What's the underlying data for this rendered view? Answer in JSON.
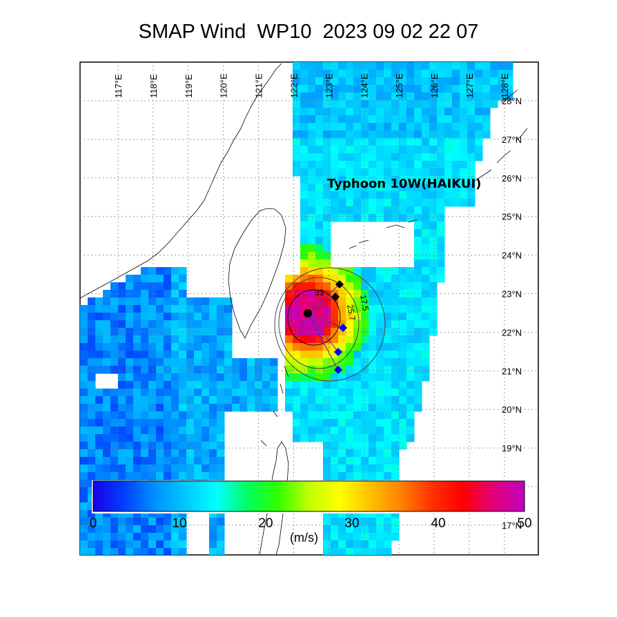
{
  "title": "SMAP Wind  WP10  2023 09 02 22 07",
  "storm_label": "Typhoon 10W(HAIKUI)",
  "longitude_labels": [
    "117°E",
    "118°E",
    "119°E",
    "120°E",
    "121°E",
    "122°E",
    "123°E",
    "124°E",
    "125°E",
    "126°E",
    "127°E",
    "128°E"
  ],
  "latitude_labels": [
    "28°N",
    "27°N",
    "26°N",
    "25°N",
    "24°N",
    "23°N",
    "22°N",
    "21°N",
    "20°N",
    "19°N",
    "18°N",
    "17°N"
  ],
  "contour_labels": [
    "33",
    "25.7",
    "17.5"
  ],
  "colorbar": {
    "ticks": [
      "0",
      "10",
      "20",
      "30",
      "40",
      "50"
    ],
    "unit": "(m/s)",
    "range": [
      0,
      50
    ],
    "colors": [
      "#1a00e6",
      "#0040ff",
      "#0090ff",
      "#00c8ff",
      "#00ffff",
      "#00ff60",
      "#30ff00",
      "#c0ff00",
      "#ffff00",
      "#ffc000",
      "#ff8000",
      "#ff3000",
      "#ff0000",
      "#e0007a",
      "#c000c0"
    ]
  },
  "colors": {
    "land_outline": "#000000",
    "grid": "#7a7a7a",
    "center_marker": "#000000",
    "radii_marker": "#0000ff"
  },
  "map_extent": {
    "lon": [
      116,
      129
    ],
    "lat": [
      16.5,
      28.5
    ]
  },
  "storm_center": {
    "lon": 122.5,
    "lat": 22.5
  }
}
